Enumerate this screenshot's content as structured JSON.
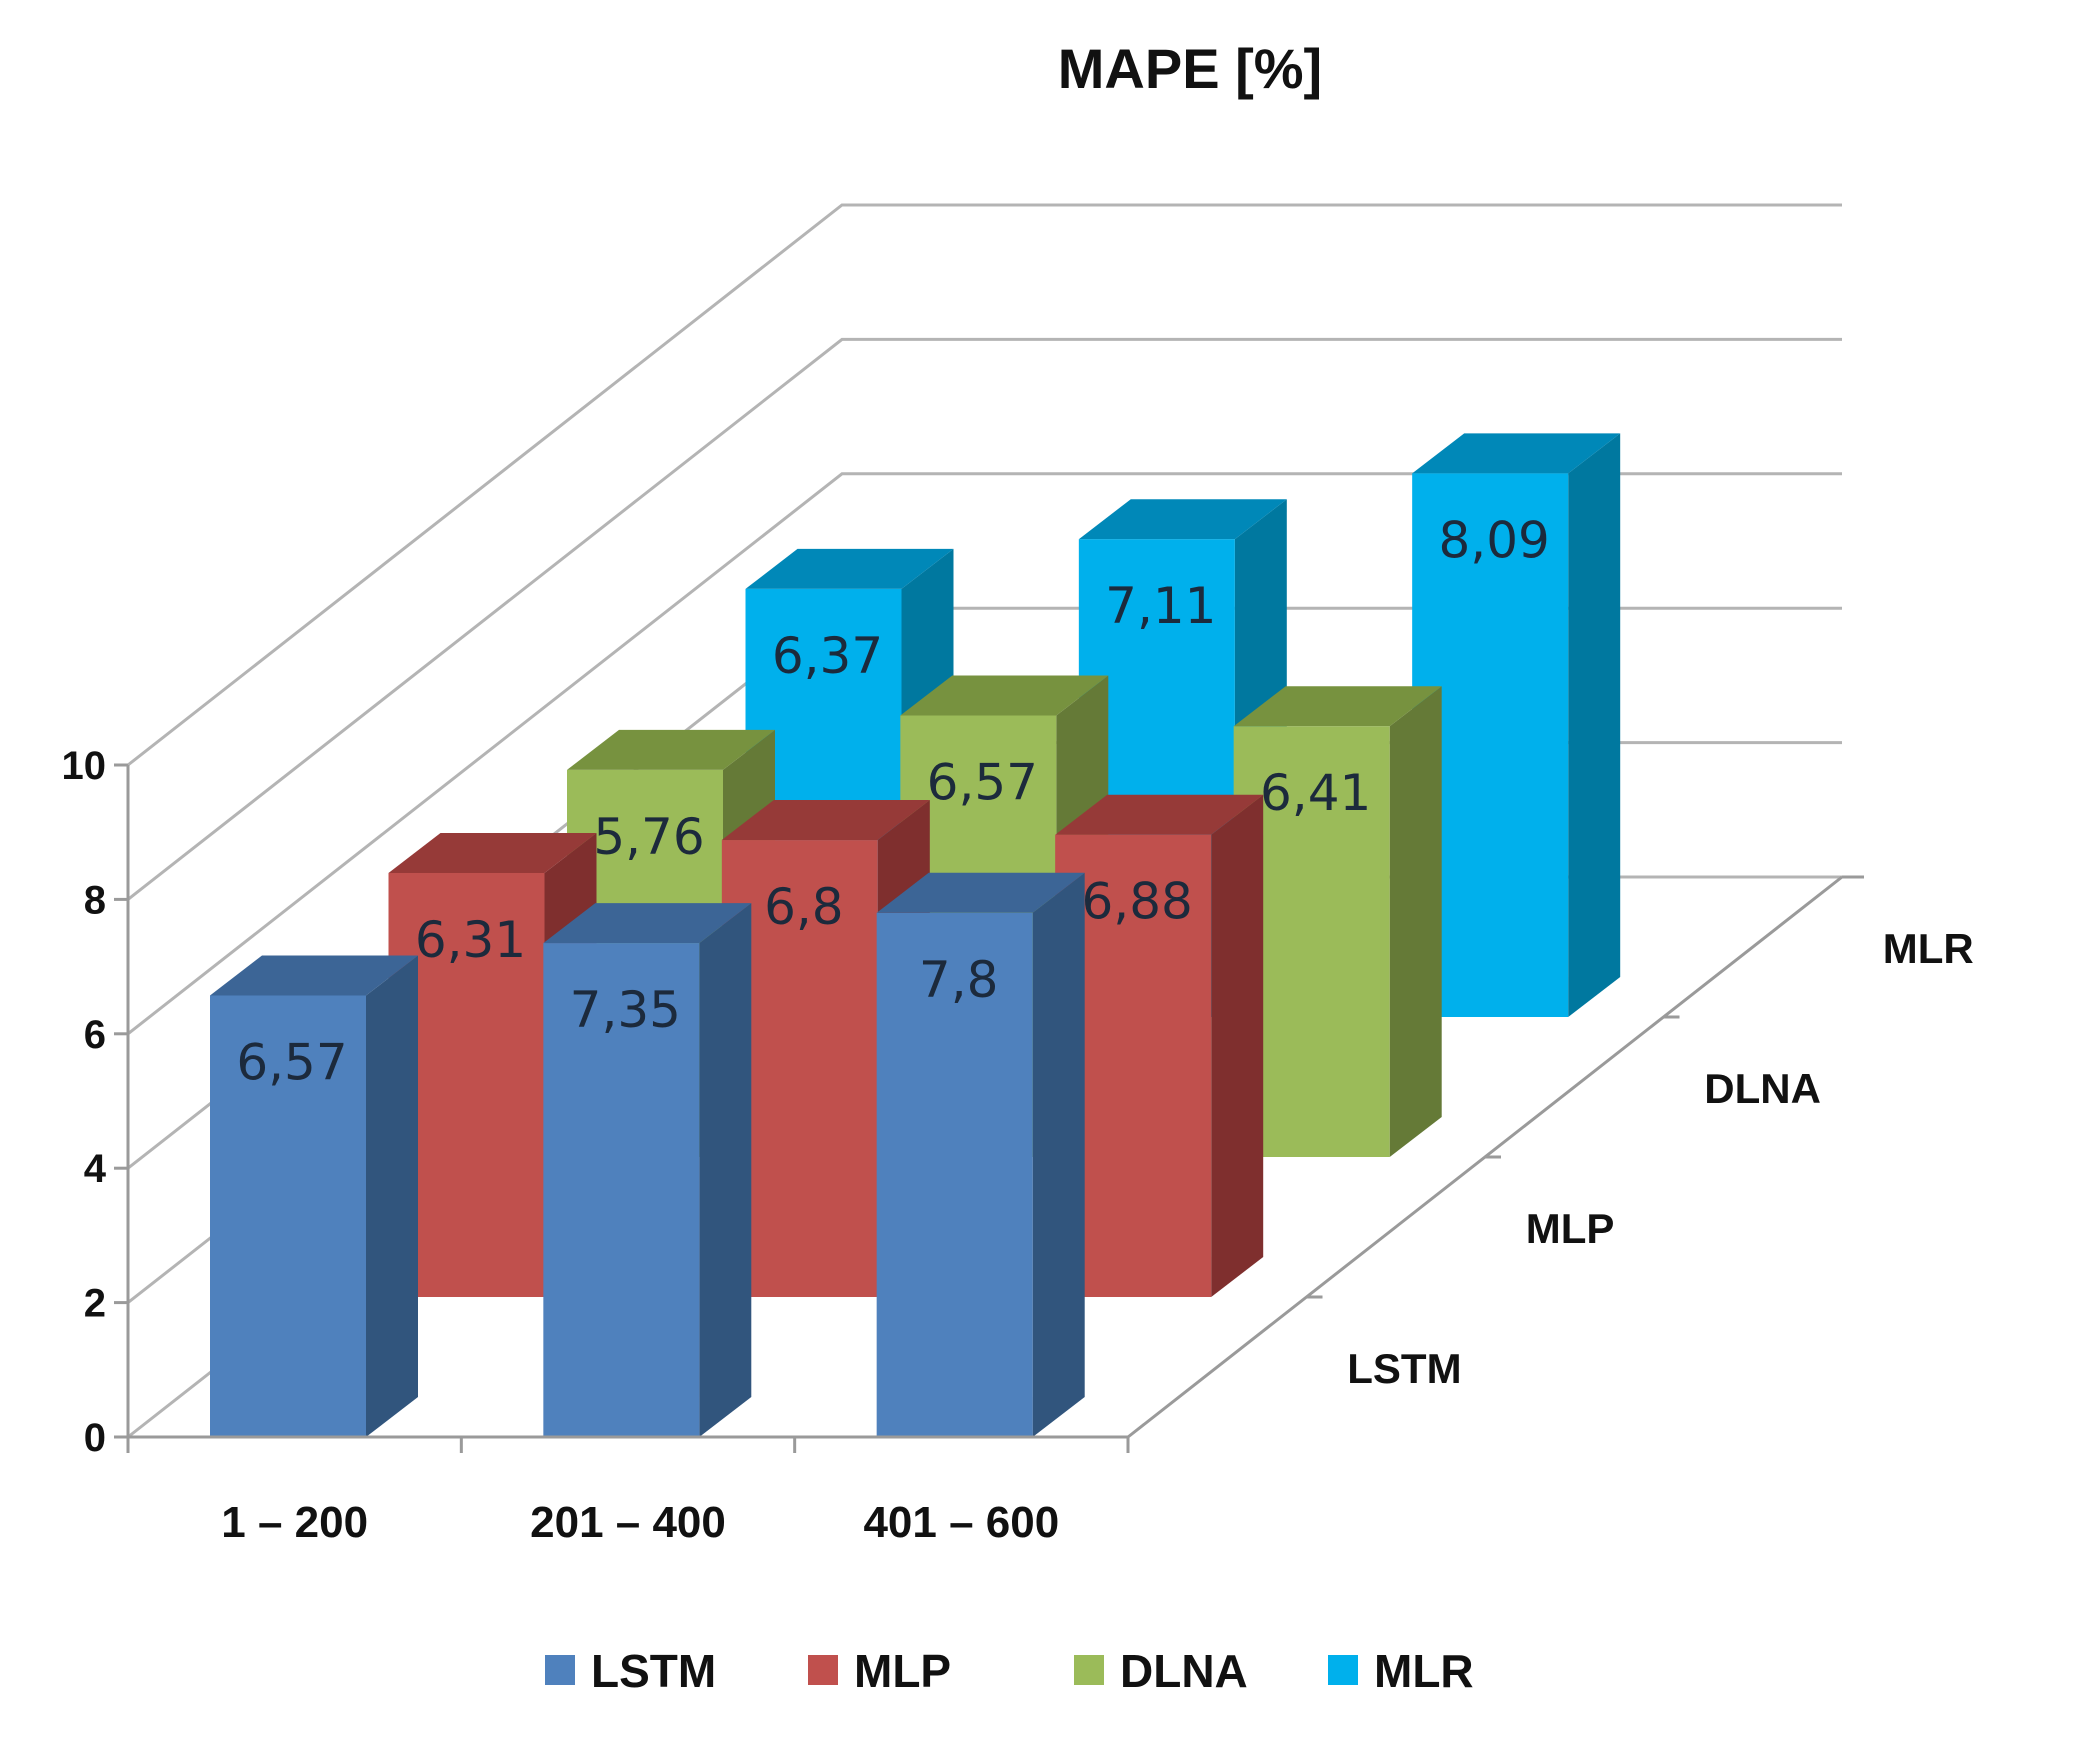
{
  "chart_data": {
    "type": "bar",
    "variant": "3d-clustered-depth",
    "title": "MAPE [%]",
    "categories": [
      "1 – 200",
      "201 – 400",
      "401 – 600"
    ],
    "ylim": [
      0,
      10
    ],
    "yticks": [
      "0",
      "2",
      "4",
      "6",
      "8",
      "10"
    ],
    "grid": true,
    "legend_position": "bottom",
    "series": [
      {
        "name": "LSTM",
        "values": [
          6.57,
          7.35,
          7.8
        ],
        "labels": [
          "6,57",
          "7,35",
          "7,8"
        ],
        "color": "#4f81bd",
        "side": "#31557d",
        "top": "#3c6596"
      },
      {
        "name": "MLP",
        "values": [
          6.31,
          6.8,
          6.88
        ],
        "labels": [
          "6,31",
          "6,8",
          "6,88"
        ],
        "color": "#c0504d",
        "side": "#7f2f2e",
        "top": "#963a38"
      },
      {
        "name": "DLNA",
        "values": [
          5.76,
          6.57,
          6.41
        ],
        "labels": [
          "5,76",
          "6,57",
          "6,41"
        ],
        "color": "#9bbb59",
        "side": "#657a37",
        "top": "#77923f"
      },
      {
        "name": "MLR",
        "values": [
          6.37,
          7.11,
          8.09
        ],
        "labels": [
          "6,37",
          "7,11",
          "8,09"
        ],
        "color": "#00b0ec",
        "side": "#00789f",
        "top": "#0088b8"
      }
    ],
    "depth_labels": [
      "LSTM",
      "MLP",
      "DLNA",
      "MLR"
    ]
  }
}
